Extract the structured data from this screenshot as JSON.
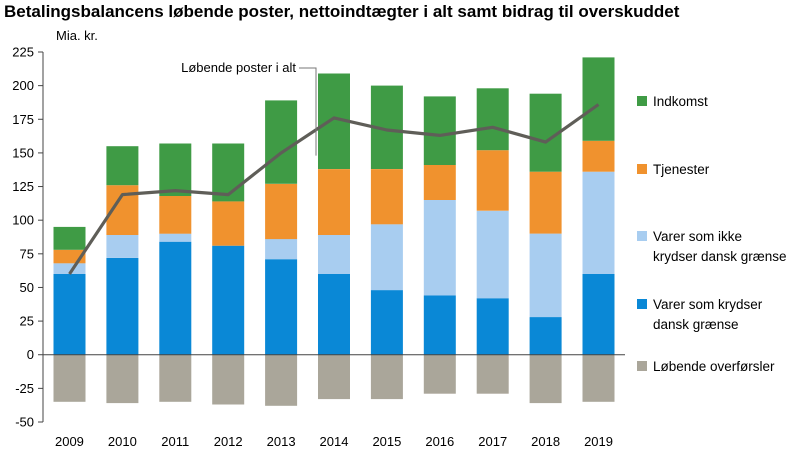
{
  "chart_data": {
    "type": "bar",
    "title": "Betalingsbalancens løbende poster, nettoindtægter i alt samt bidrag til overskuddet",
    "ylabel": "Mia. kr.",
    "ylim": [
      -50,
      225
    ],
    "yticks": [
      -50,
      -25,
      0,
      25,
      50,
      75,
      100,
      125,
      150,
      175,
      200,
      225
    ],
    "grid": false,
    "legend_position": "right",
    "categories": [
      "2009",
      "2010",
      "2011",
      "2012",
      "2013",
      "2014",
      "2015",
      "2016",
      "2017",
      "2018",
      "2019"
    ],
    "series": [
      {
        "name": "Varer som krydser dansk grænse",
        "color": "#0a88d6",
        "values": [
          60,
          72,
          84,
          81,
          71,
          60,
          48,
          44,
          42,
          28,
          60
        ]
      },
      {
        "name": "Varer som ikke krydser dansk grænse",
        "color": "#a8cdf0",
        "values": [
          8,
          17,
          6,
          0,
          15,
          29,
          49,
          71,
          65,
          62,
          76
        ]
      },
      {
        "name": "Tjenester",
        "color": "#f0922e",
        "values": [
          10,
          37,
          28,
          33,
          41,
          49,
          41,
          26,
          45,
          46,
          23
        ]
      },
      {
        "name": "Indkomst",
        "color": "#3f9b45",
        "values": [
          17,
          29,
          39,
          43,
          62,
          71,
          62,
          51,
          46,
          58,
          62
        ]
      },
      {
        "name": "Løbende overførsler",
        "color": "#aaa69a",
        "values": [
          -35,
          -36,
          -35,
          -37,
          -38,
          -33,
          -33,
          -29,
          -29,
          -36,
          -35
        ]
      }
    ],
    "line": {
      "name": "Løbende poster i alt",
      "color": "#5f5e58",
      "values": [
        60,
        119,
        122,
        119,
        150,
        176,
        167,
        163,
        169,
        158,
        186
      ]
    },
    "annotation": "Løbende poster i alt",
    "legend": [
      {
        "series": 3,
        "lines": [
          "Indkomst"
        ]
      },
      {
        "series": 2,
        "lines": [
          "Tjenester"
        ]
      },
      {
        "series": 1,
        "lines": [
          "Varer som ikke",
          "krydser dansk grænse"
        ]
      },
      {
        "series": 0,
        "lines": [
          "Varer som krydser",
          "dansk grænse"
        ]
      },
      {
        "series": 4,
        "lines": [
          "Løbende overførsler"
        ]
      }
    ]
  }
}
